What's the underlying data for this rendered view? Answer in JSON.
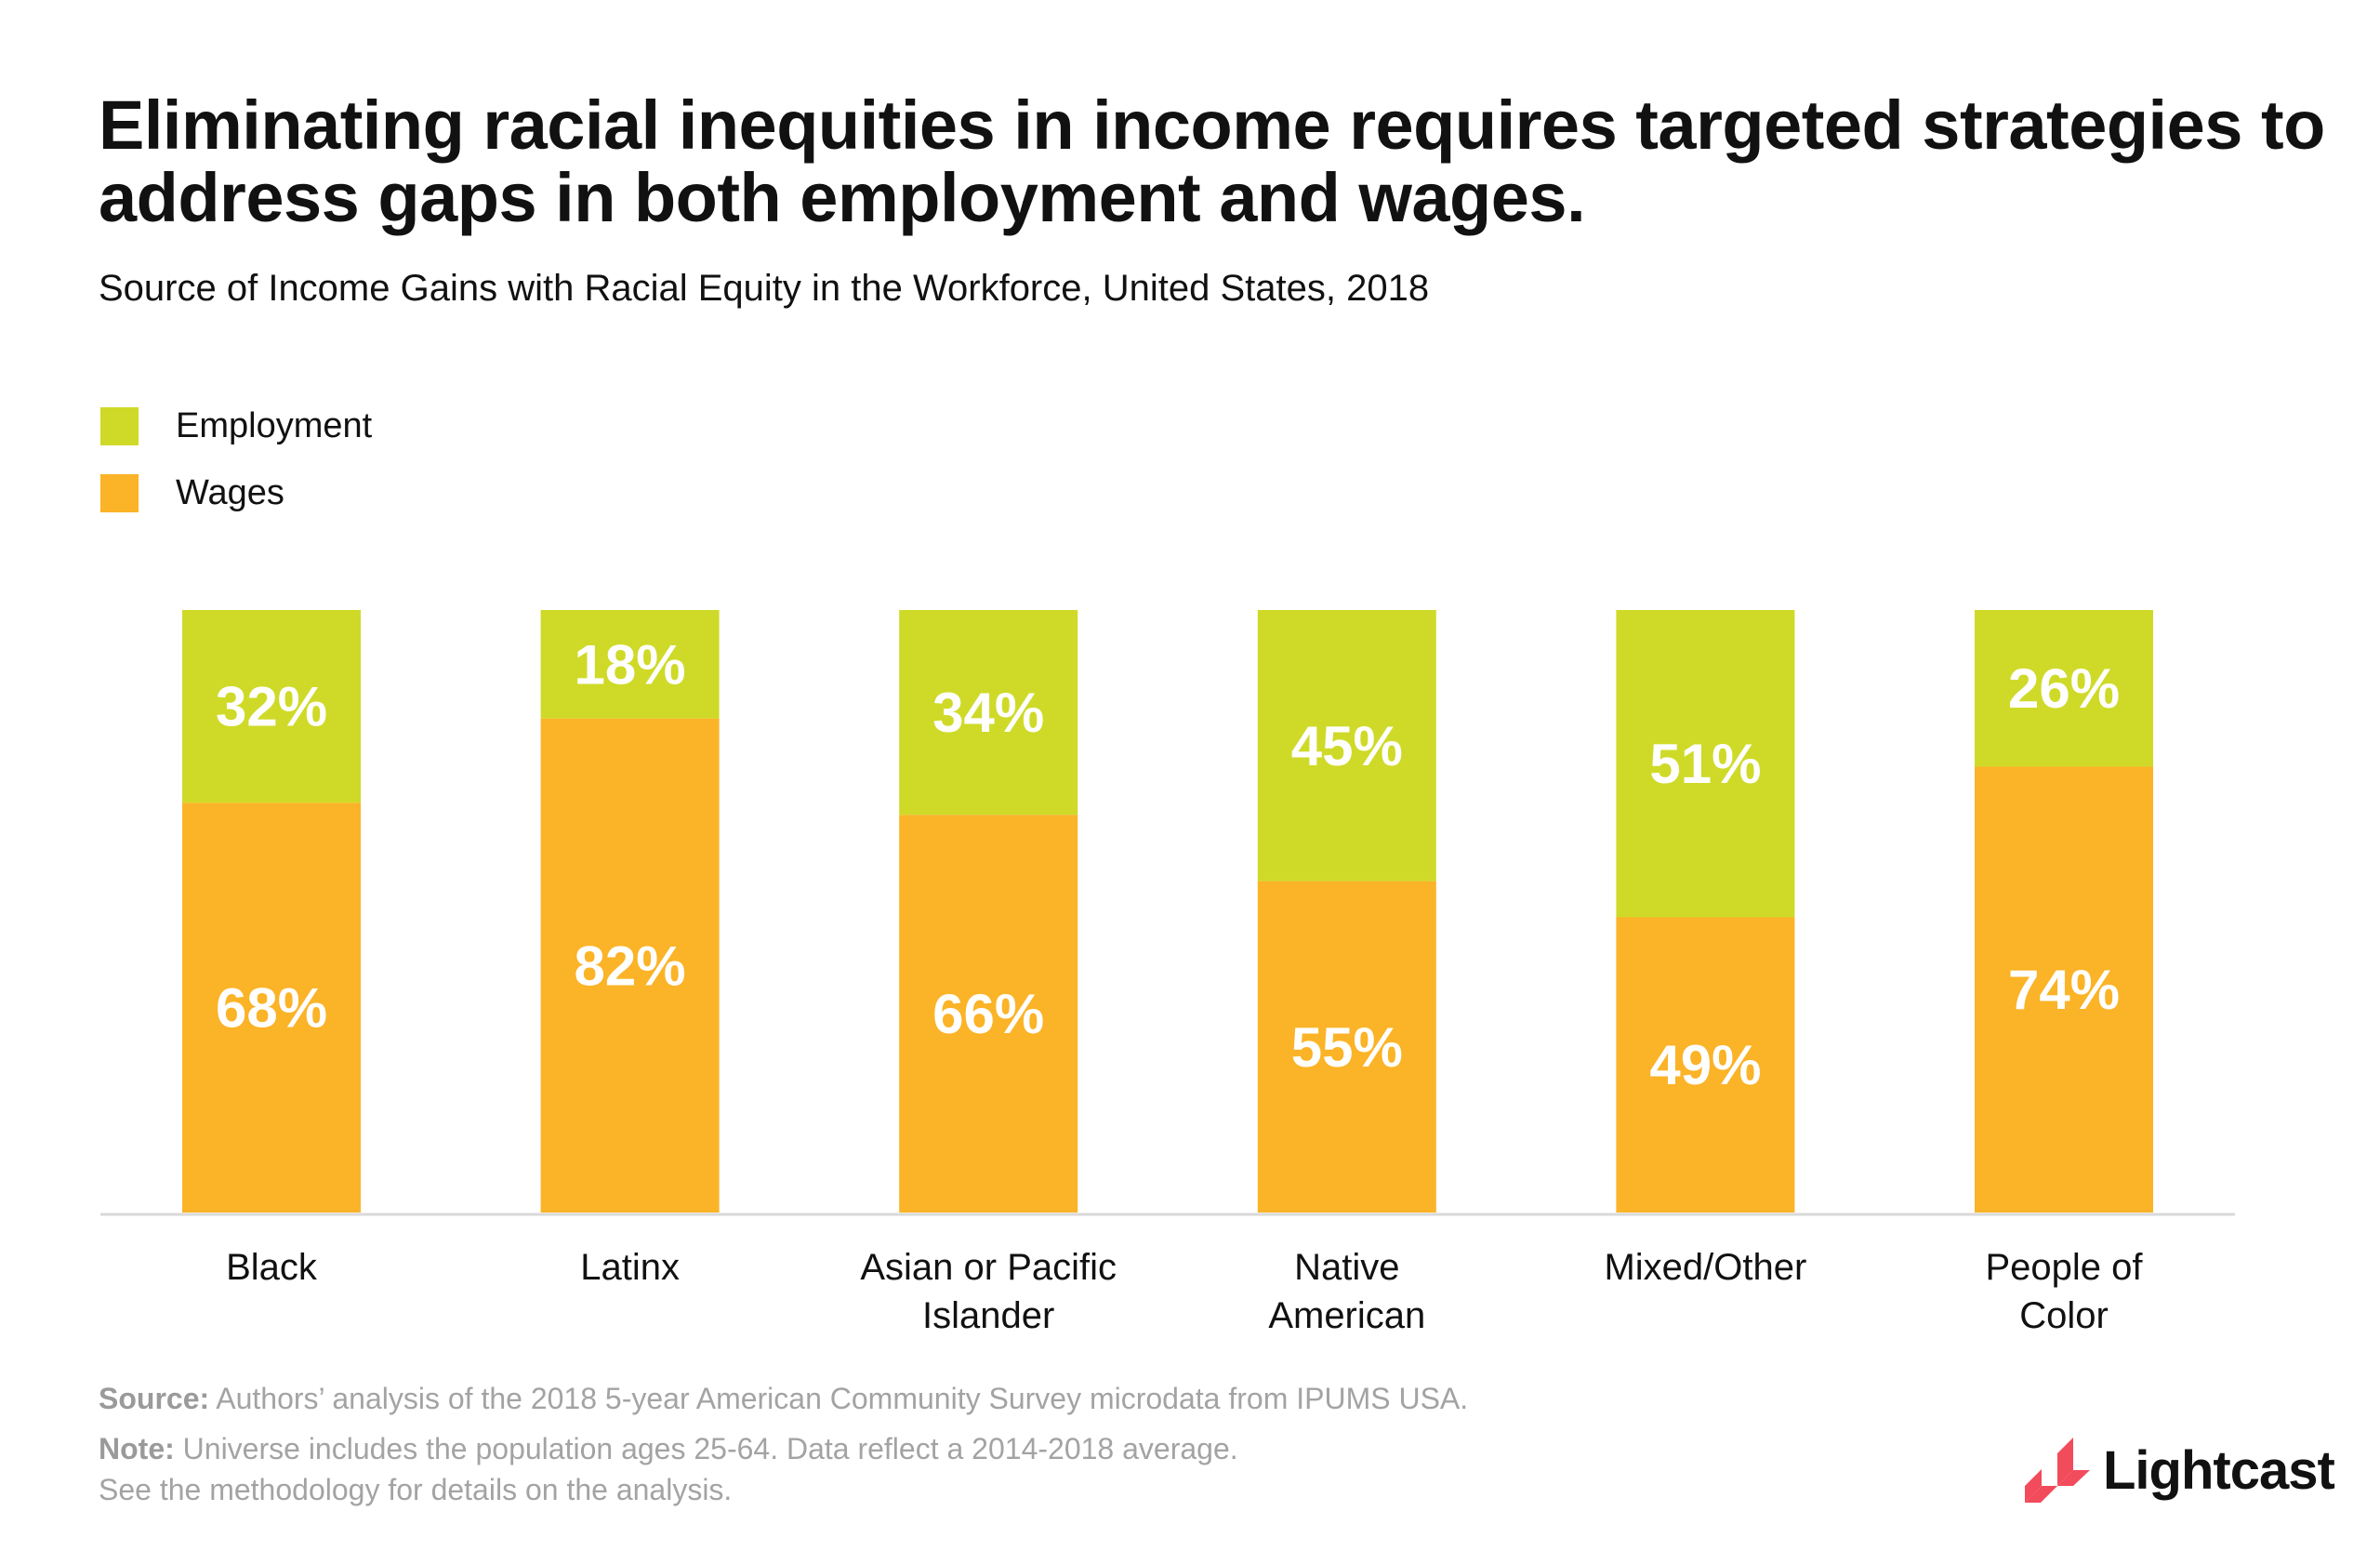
{
  "title": "Eliminating racial inequities in income requires targeted strategies to address gaps in both employment and wages.",
  "subtitle": "Source of Income Gains with Racial Equity in the Workforce, United States, 2018",
  "footer": {
    "source_label": "Source:",
    "source_text": " Authors’ analysis of the 2018 5-year American Community Survey microdata from IPUMS USA.",
    "note_label": "Note:",
    "note_text": " Universe includes the population ages 25-64. Data reflect a 2014-2018 average.",
    "note_line2": "See the methodology for details on the analysis."
  },
  "logo": {
    "text": "Lightcast",
    "color": "#f24b5b"
  },
  "chart_data": {
    "type": "bar",
    "stacked": true,
    "title": "Eliminating racial inequities in income requires targeted strategies to address gaps in both employment and wages.",
    "subtitle": "Source of Income Gains with Racial Equity in the Workforce, United States, 2018",
    "categories": [
      [
        "Black"
      ],
      [
        "Latinx"
      ],
      [
        "Asian or Pacific",
        "Islander"
      ],
      [
        "Native",
        "American"
      ],
      [
        "Mixed/Other"
      ],
      [
        "People of",
        "Color"
      ]
    ],
    "series": [
      {
        "name": "Wages",
        "color": "#fbb327",
        "values": [
          68,
          82,
          66,
          55,
          49,
          74
        ]
      },
      {
        "name": "Employment",
        "color": "#cfda28",
        "values": [
          32,
          18,
          34,
          45,
          51,
          26
        ]
      }
    ],
    "legend": [
      {
        "name": "Employment",
        "color": "#cfda28"
      },
      {
        "name": "Wages",
        "color": "#fbb327"
      }
    ],
    "ylim": [
      0,
      100
    ],
    "unit": "%",
    "grid": false,
    "legend_position": "top-left",
    "axes_visible": false
  }
}
